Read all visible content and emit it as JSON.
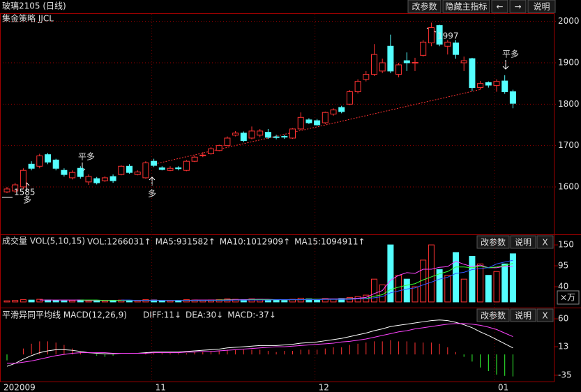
{
  "toolbar": {
    "buttons": [
      "改参数",
      "隐藏主指标",
      "←",
      "→",
      "说明"
    ]
  },
  "chart_data": [
    {
      "type": "candlestick",
      "title": "玻璃2105 (日线)",
      "subtitle": "集金策略 JJCL",
      "categories": [
        "202009",
        null,
        null,
        null,
        null,
        null,
        null,
        null,
        null,
        null,
        null,
        null,
        null,
        null,
        null,
        null,
        null,
        null,
        "11",
        null,
        null,
        null,
        null,
        null,
        null,
        null,
        null,
        null,
        null,
        null,
        null,
        null,
        null,
        null,
        null,
        null,
        null,
        null,
        "12",
        null,
        null,
        null,
        null,
        null,
        null,
        null,
        null,
        null,
        null,
        null,
        null,
        null,
        null,
        null,
        null,
        null,
        null,
        null,
        null,
        null,
        "01",
        null,
        null
      ],
      "open": [
        1588,
        1590,
        1600,
        1655,
        1650,
        1678,
        1665,
        1640,
        1622,
        1645,
        1612,
        1620,
        1615,
        1625,
        1630,
        1650,
        1630,
        1622,
        1662,
        1646,
        1640,
        1646,
        1640,
        1662,
        1676,
        1680,
        1688,
        1700,
        1725,
        1730,
        1718,
        1725,
        1732,
        1721,
        1722,
        1718,
        1740,
        1762,
        1760,
        1755,
        1776,
        1792,
        1800,
        1830,
        1860,
        1872,
        1880,
        1940,
        1872,
        1905,
        1900,
        1918,
        1948,
        1990,
        1940,
        1948,
        1900,
        1910,
        1840,
        1852,
        1845,
        1856,
        1830
      ],
      "high": [
        1600,
        1610,
        1645,
        1662,
        1680,
        1682,
        1668,
        1645,
        1640,
        1650,
        1630,
        1624,
        1626,
        1630,
        1652,
        1655,
        1640,
        1662,
        1668,
        1650,
        1650,
        1650,
        1665,
        1676,
        1684,
        1696,
        1702,
        1722,
        1735,
        1734,
        1746,
        1740,
        1740,
        1726,
        1726,
        1742,
        1780,
        1766,
        1764,
        1782,
        1790,
        1796,
        1834,
        1860,
        1880,
        1945,
        1910,
        1968,
        1900,
        1925,
        1912,
        1955,
        1997,
        1992,
        1955,
        1955,
        1915,
        1912,
        1856,
        1855,
        1860,
        1870,
        1835
      ],
      "low": [
        1585,
        1585,
        1595,
        1640,
        1645,
        1655,
        1640,
        1625,
        1618,
        1620,
        1605,
        1606,
        1612,
        1610,
        1628,
        1632,
        1628,
        1620,
        1648,
        1640,
        1638,
        1640,
        1638,
        1660,
        1672,
        1678,
        1686,
        1698,
        1722,
        1708,
        1715,
        1720,
        1716,
        1715,
        1716,
        1716,
        1738,
        1752,
        1748,
        1752,
        1772,
        1778,
        1798,
        1826,
        1855,
        1868,
        1875,
        1875,
        1865,
        1880,
        1880,
        1915,
        1940,
        1940,
        1920,
        1910,
        1880,
        1832,
        1835,
        1840,
        1830,
        1825,
        1790
      ],
      "close": [
        1595,
        1605,
        1640,
        1645,
        1675,
        1660,
        1645,
        1630,
        1635,
        1625,
        1625,
        1610,
        1622,
        1615,
        1650,
        1635,
        1636,
        1658,
        1652,
        1642,
        1645,
        1644,
        1662,
        1672,
        1677,
        1692,
        1700,
        1718,
        1730,
        1712,
        1735,
        1735,
        1720,
        1720,
        1721,
        1740,
        1768,
        1755,
        1750,
        1780,
        1786,
        1782,
        1830,
        1855,
        1872,
        1920,
        1900,
        1880,
        1895,
        1900,
        1901,
        1950,
        1985,
        1945,
        1950,
        1920,
        1905,
        1840,
        1850,
        1846,
        1855,
        1830,
        1802
      ],
      "up_color": "#ff3232",
      "down_color": "#54ffff",
      "ylim": [
        1487,
        2018
      ],
      "yticks": [
        1600,
        1700,
        1800,
        1900,
        2000
      ],
      "grid": true,
      "annotations": [
        {
          "text": "1585",
          "color": "#ffffff"
        },
        {
          "text": "1997",
          "color": "#ffffff"
        },
        {
          "text": "平多",
          "color": "#33dd33"
        },
        {
          "text": "平多",
          "color": "#33dd33"
        },
        {
          "text": "多",
          "color": "#ff3232"
        },
        {
          "text": "多",
          "color": "#ff3232"
        }
      ]
    },
    {
      "type": "bar",
      "title": "成交量 VOL(5,10,15)",
      "buttons": [
        "改参数",
        "说明",
        "X"
      ],
      "unit_label": "×万",
      "ylim": [
        -13,
        174
      ],
      "yticks": [
        150,
        95,
        40
      ],
      "series": [
        {
          "name": "VOL:1266031↑",
          "color": "#ffffff",
          "values": [
            3,
            4,
            6,
            5,
            7,
            5,
            4,
            3,
            4,
            5,
            3,
            4,
            3,
            4,
            5,
            4,
            3,
            6,
            5,
            3,
            3,
            4,
            6,
            5,
            4,
            5,
            6,
            8,
            7,
            6,
            8,
            7,
            6,
            5,
            4,
            7,
            10,
            8,
            7,
            9,
            8,
            9,
            12,
            14,
            18,
            60,
            45,
            150,
            70,
            60,
            40,
            110,
            150,
            85,
            70,
            130,
            60,
            120,
            100,
            70,
            80,
            100,
            126.6031
          ]
        },
        {
          "name": "MA5:931582↑",
          "color": "#ff44ff",
          "values": [
            null,
            null,
            null,
            null,
            5,
            5,
            5,
            5,
            5,
            5,
            4,
            4,
            4,
            4,
            4,
            4,
            4,
            4,
            5,
            4,
            4,
            4,
            4,
            5,
            5,
            5,
            5,
            6,
            6,
            6,
            7,
            7,
            7,
            6,
            6,
            6,
            6,
            7,
            7,
            8,
            8,
            8,
            9,
            10,
            12,
            22,
            30,
            57,
            70,
            77,
            75,
            86,
            86,
            91,
            93,
            107,
            99,
            93,
            97,
            90,
            90,
            94,
            93.1582
          ]
        },
        {
          "name": "MA10:1012909↑",
          "color": "#33ff33",
          "values": [
            null,
            null,
            null,
            null,
            null,
            null,
            null,
            null,
            null,
            5,
            5,
            5,
            4,
            4,
            4,
            4,
            4,
            4,
            4,
            4,
            4,
            4,
            4,
            4,
            4,
            4,
            5,
            5,
            5,
            5,
            6,
            6,
            6,
            6,
            6,
            6,
            6,
            7,
            7,
            7,
            7,
            7,
            8,
            8,
            9,
            15,
            19,
            33,
            39,
            44,
            48,
            58,
            66,
            74,
            80,
            92,
            92,
            90,
            94,
            90,
            92,
            96,
            101.2909
          ]
        },
        {
          "name": "MA15:1094911↑",
          "color": "#3355ff",
          "values": [
            null,
            null,
            null,
            null,
            null,
            null,
            null,
            null,
            null,
            null,
            null,
            null,
            null,
            null,
            5,
            5,
            4,
            4,
            4,
            4,
            4,
            4,
            4,
            4,
            4,
            4,
            4,
            4,
            5,
            5,
            5,
            5,
            5,
            6,
            6,
            6,
            6,
            6,
            6,
            7,
            7,
            7,
            7,
            8,
            8,
            11,
            14,
            24,
            29,
            34,
            37,
            45,
            52,
            60,
            65,
            75,
            78,
            85,
            88,
            90,
            100,
            105,
            109.4911
          ]
        }
      ]
    },
    {
      "type": "macd",
      "title": "平滑异同平均线 MACD(12,26,9)",
      "buttons": [
        "改参数",
        "说明",
        "X"
      ],
      "ylim": [
        -46.8,
        76.5
      ],
      "yticks": [
        60,
        13,
        -35
      ],
      "series": [
        {
          "name": "DIFF:11↓",
          "color": "#ffffff",
          "values": [
            -20,
            -15,
            -8,
            -2,
            3,
            6,
            8,
            8,
            7,
            5,
            3,
            2,
            1,
            1,
            2,
            2,
            2,
            3,
            4,
            4,
            4,
            4,
            5,
            6,
            7,
            8,
            9,
            11,
            12,
            13,
            14,
            15,
            15,
            15,
            16,
            17,
            19,
            20,
            21,
            23,
            25,
            27,
            30,
            33,
            36,
            40,
            43,
            47,
            49,
            51,
            53,
            55,
            57,
            58,
            57,
            54,
            50,
            45,
            38,
            32,
            25,
            18,
            11
          ]
        },
        {
          "name": "DEA:30↓",
          "color": "#ff44ff",
          "values": [
            -15,
            -15,
            -13,
            -11,
            -8,
            -5,
            -2,
            0,
            2,
            3,
            3,
            3,
            3,
            2,
            2,
            2,
            2,
            2,
            3,
            3,
            3,
            3,
            4,
            4,
            5,
            5,
            6,
            7,
            8,
            9,
            10,
            11,
            12,
            13,
            13,
            14,
            15,
            16,
            17,
            18,
            19,
            21,
            22,
            24,
            26,
            29,
            32,
            35,
            38,
            40,
            43,
            45,
            47,
            49,
            51,
            52,
            52,
            51,
            49,
            46,
            42,
            36,
            30
          ]
        },
        {
          "name": "MACD:-37↓",
          "color": "#ff3232",
          "negative_color": "#33ff33",
          "values": [
            -10,
            0,
            10,
            18,
            22,
            22,
            20,
            16,
            10,
            4,
            0,
            -2,
            -4,
            -2,
            0,
            0,
            0,
            2,
            2,
            2,
            2,
            2,
            2,
            4,
            4,
            6,
            6,
            8,
            8,
            8,
            8,
            8,
            6,
            4,
            6,
            6,
            8,
            8,
            8,
            10,
            12,
            12,
            16,
            18,
            20,
            22,
            22,
            24,
            22,
            22,
            20,
            20,
            20,
            18,
            12,
            4,
            -4,
            -12,
            -22,
            -28,
            -34,
            -36,
            -37
          ]
        }
      ]
    }
  ]
}
